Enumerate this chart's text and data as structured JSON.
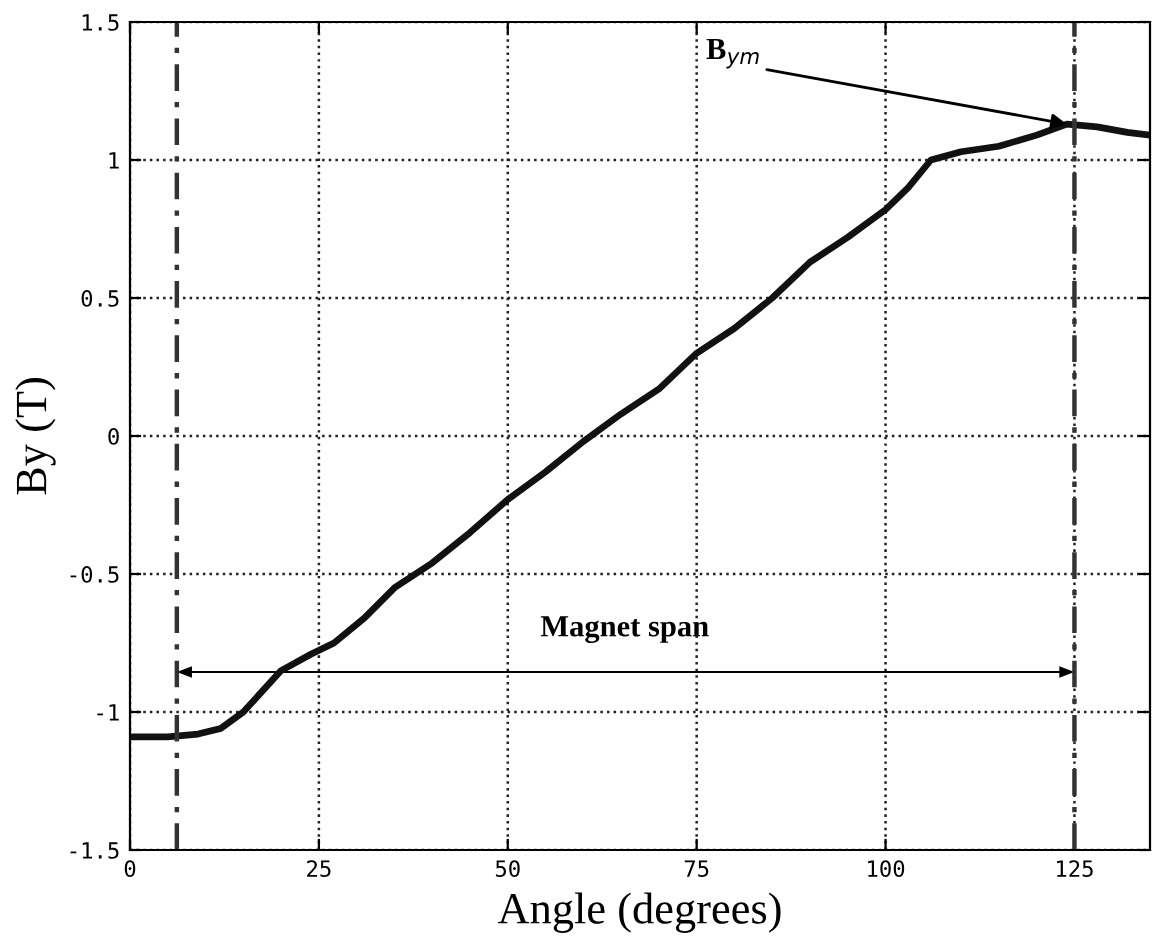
{
  "chart_data": {
    "type": "line",
    "xlabel": "Angle (degrees)",
    "ylabel": "By (T)",
    "x": [
      0,
      5,
      9,
      12,
      15,
      20,
      24,
      27,
      31,
      35,
      40,
      45,
      50,
      55,
      60,
      65,
      70,
      75,
      80,
      85,
      90,
      95,
      100,
      103,
      106,
      110,
      115,
      120,
      124,
      128,
      132,
      135
    ],
    "series": [
      {
        "color": "#111111",
        "values": [
          -1.09,
          -1.09,
          -1.08,
          -1.06,
          -1.0,
          -0.85,
          -0.79,
          -0.75,
          -0.66,
          -0.55,
          -0.46,
          -0.35,
          -0.23,
          -0.13,
          -0.02,
          0.08,
          0.17,
          0.3,
          0.39,
          0.5,
          0.63,
          0.72,
          0.82,
          0.9,
          1.0,
          1.03,
          1.05,
          1.09,
          1.13,
          1.12,
          1.1,
          1.09
        ]
      }
    ],
    "xlim": [
      0,
      135
    ],
    "ylim": [
      -1.5,
      1.5
    ],
    "xticks": [
      0,
      25,
      50,
      75,
      100,
      125
    ],
    "yticks": [
      -1.5,
      -1,
      -0.5,
      0,
      0.5,
      1,
      1.5
    ],
    "grid": true,
    "marker": "none",
    "line_style": "solid",
    "ref_lines": [
      {
        "axis": "x",
        "value": 6.2,
        "line_style": "dashdot",
        "color": "#333333"
      },
      {
        "axis": "x",
        "value": 125,
        "line_style": "dashdot",
        "color": "#333333"
      }
    ],
    "annotations": [
      {
        "text": "B$_{ym}$",
        "x": 124,
        "y": 1.13
      },
      "Magnet span"
    ]
  }
}
